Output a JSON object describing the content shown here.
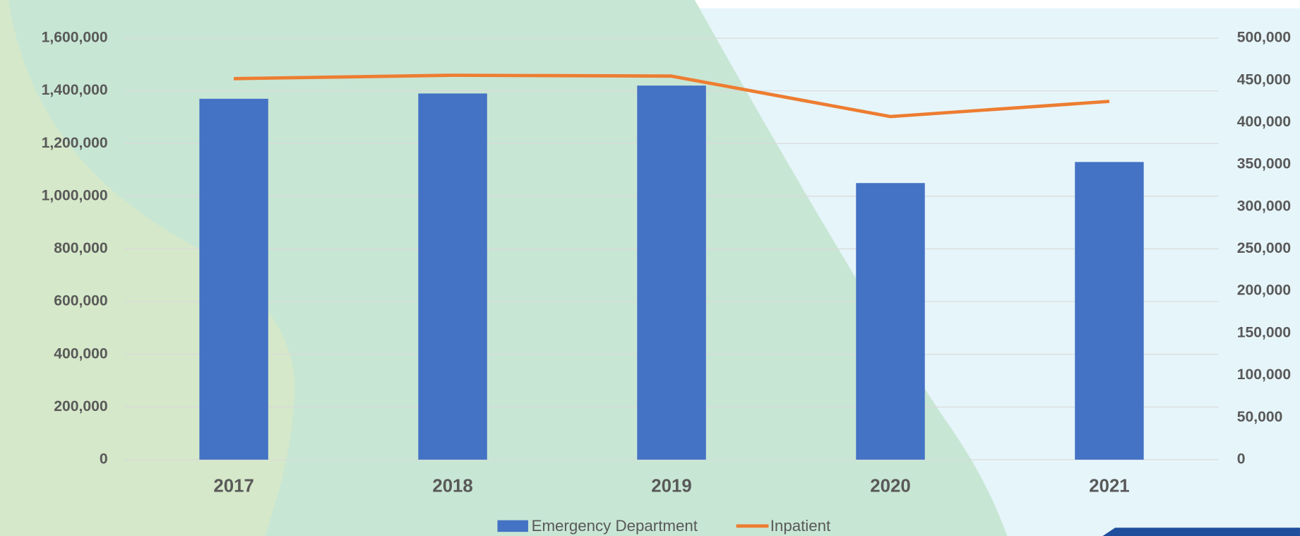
{
  "chart_data": {
    "type": "bar_line",
    "categories": [
      "2017",
      "2018",
      "2019",
      "2020",
      "2021"
    ],
    "series": [
      {
        "name": "Emergency Department",
        "color": "#4472c4",
        "type": "bar",
        "values": [
          1370000,
          1390000,
          1420000,
          1050000,
          1130000
        ]
      },
      {
        "name": "Inpatient",
        "color": "#ed7d31",
        "type": "line",
        "axis": "y2",
        "values": [
          452000,
          456000,
          455000,
          407000,
          425000
        ]
      }
    ],
    "ylim": [
      0,
      1600000
    ],
    "yticks": [
      0,
      {
        "value": 200000,
        "label": "200,000"
      },
      {
        "value": 400000,
        "label": "400,000"
      },
      {
        "value": 600000,
        "label": "600,000"
      },
      {
        "value": 800000,
        "label": "800,000"
      },
      {
        "value": 1000000,
        "label": "1,000,000"
      },
      {
        "value": 1200000,
        "label": "1,200,000"
      },
      {
        "value": 1400000,
        "label": "1,400,000"
      },
      {
        "value": 1600000,
        "label": "1,600,000"
      }
    ],
    "y2lim": [
      0,
      500000
    ],
    "y2ticks": [
      0,
      {
        "value": 50000,
        "label": "50,000"
      },
      {
        "value": 100000,
        "label": "100,000"
      },
      {
        "value": 150000,
        "label": "150,000"
      },
      {
        "value": 200000,
        "label": "200,000"
      },
      {
        "value": 250000,
        "label": "250,000"
      },
      {
        "value": 300000,
        "label": "300,000"
      },
      {
        "value": 350000,
        "label": "350,000"
      },
      {
        "value": 400000,
        "label": "400,000"
      },
      {
        "value": 450000,
        "label": "450,000"
      },
      {
        "value": 500000,
        "label": "500,000"
      }
    ],
    "grid": true,
    "legend": "bottom"
  }
}
